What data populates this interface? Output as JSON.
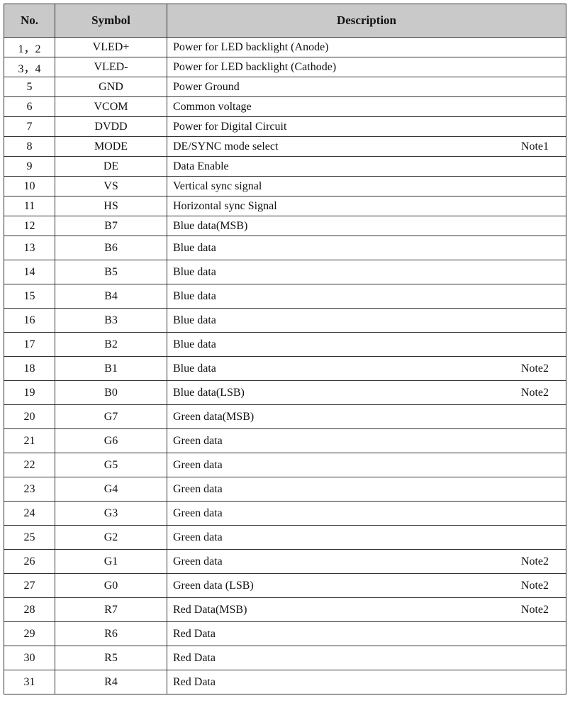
{
  "headers": {
    "no": "No.",
    "symbol": "Symbol",
    "description": "Description"
  },
  "rows": [
    {
      "no": "1，2",
      "symbol": "VLED+",
      "description": "Power for LED backlight (Anode)",
      "note": ""
    },
    {
      "no": "3，4",
      "symbol": "VLED-",
      "description": "Power for LED backlight (Cathode)",
      "note": ""
    },
    {
      "no": "5",
      "symbol": "GND",
      "description": "Power Ground",
      "note": ""
    },
    {
      "no": "6",
      "symbol": "VCOM",
      "description": "Common voltage",
      "note": ""
    },
    {
      "no": "7",
      "symbol": "DVDD",
      "description": "Power for Digital Circuit",
      "note": ""
    },
    {
      "no": "8",
      "symbol": "MODE",
      "description": "DE/SYNC mode select",
      "note": "Note1"
    },
    {
      "no": "9",
      "symbol": "DE",
      "description": "Data Enable",
      "note": ""
    },
    {
      "no": "10",
      "symbol": "VS",
      "description": "Vertical sync signal",
      "note": ""
    },
    {
      "no": "11",
      "symbol": "HS",
      "description": "Horizontal sync Signal",
      "note": ""
    },
    {
      "no": "12",
      "symbol": "B7",
      "description": "Blue data(MSB)",
      "note": ""
    },
    {
      "no": "13",
      "symbol": "B6",
      "description": "Blue data",
      "note": ""
    },
    {
      "no": "14",
      "symbol": "B5",
      "description": "Blue data",
      "note": ""
    },
    {
      "no": "15",
      "symbol": "B4",
      "description": "Blue data",
      "note": ""
    },
    {
      "no": "16",
      "symbol": "B3",
      "description": "Blue data",
      "note": ""
    },
    {
      "no": "17",
      "symbol": "B2",
      "description": "Blue data",
      "note": ""
    },
    {
      "no": "18",
      "symbol": "B1",
      "description": "Blue data",
      "note": "Note2"
    },
    {
      "no": "19",
      "symbol": "B0",
      "description": "Blue data(LSB)",
      "note": "Note2"
    },
    {
      "no": "20",
      "symbol": "G7",
      "description": "Green data(MSB)",
      "note": ""
    },
    {
      "no": "21",
      "symbol": "G6",
      "description": "Green data",
      "note": ""
    },
    {
      "no": "22",
      "symbol": "G5",
      "description": "Green data",
      "note": ""
    },
    {
      "no": "23",
      "symbol": "G4",
      "description": "Green data",
      "note": ""
    },
    {
      "no": "24",
      "symbol": "G3",
      "description": "Green data",
      "note": ""
    },
    {
      "no": "25",
      "symbol": "G2",
      "description": "Green data",
      "note": ""
    },
    {
      "no": "26",
      "symbol": "G1",
      "description": "Green data",
      "note": "Note2"
    },
    {
      "no": "27",
      "symbol": "G0",
      "description": "Green data (LSB)",
      "note": "Note2"
    },
    {
      "no": "28",
      "symbol": "R7",
      "description": "Red Data(MSB)",
      "note": "Note2"
    },
    {
      "no": "29",
      "symbol": "R6",
      "description": "Red Data",
      "note": ""
    },
    {
      "no": "30",
      "symbol": "R5",
      "description": "Red Data",
      "note": ""
    },
    {
      "no": "31",
      "symbol": "R4",
      "description": "Red Data",
      "note": ""
    }
  ]
}
